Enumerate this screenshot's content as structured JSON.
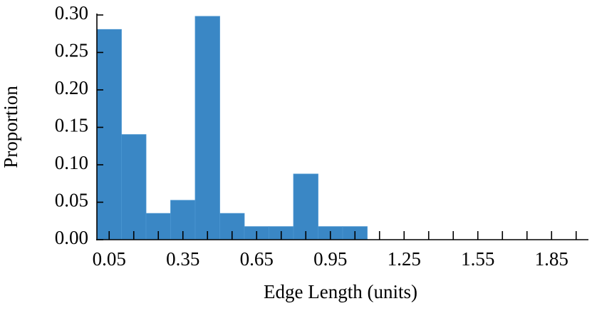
{
  "chart_data": {
    "type": "histogram",
    "x_label": "Edge Length (units)",
    "y_label": "Proportion",
    "bins": [
      0,
      0.1,
      0.2,
      0.3,
      0.4,
      0.5,
      0.6,
      0.7,
      0.8,
      0.9,
      1.0,
      1.1
    ],
    "values": [
      0.2807,
      0.1404,
      0.0351,
      0.0526,
      0.2982,
      0.0351,
      0.0175,
      0.0175,
      0.0877,
      0.0175,
      0.0175
    ],
    "color": "#3a87c5",
    "xlim": [
      0,
      2
    ],
    "xticks": [
      0.05,
      0.35,
      0.65,
      0.95,
      1.25,
      1.55,
      1.85
    ],
    "xminor_ticks": [
      0.15,
      0.25,
      0.45,
      0.55,
      0.75,
      0.85,
      1.05,
      1.15,
      1.35,
      1.45,
      1.65,
      1.75,
      1.95
    ],
    "ylim": [
      0,
      0.3
    ],
    "yticks": [
      {
        "value": 0,
        "label": "0.00"
      },
      {
        "value": 0.05,
        "label": "0.05"
      },
      {
        "value": 0.1,
        "label": "0.10"
      },
      {
        "value": 0.15,
        "label": "0.15"
      },
      {
        "value": 0.2,
        "label": "0.20"
      },
      {
        "value": 0.25,
        "label": "0.25"
      },
      {
        "value": 0.3,
        "label": "0.30"
      }
    ]
  }
}
